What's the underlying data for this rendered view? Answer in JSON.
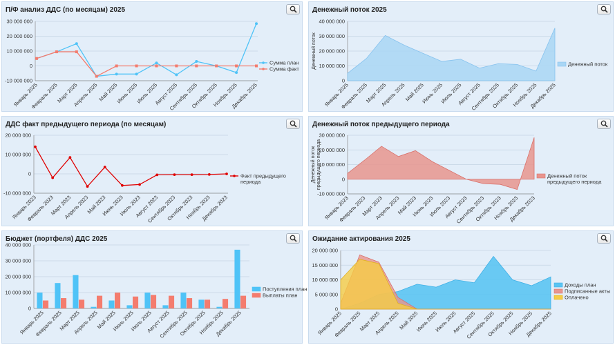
{
  "panels": [
    {
      "title": "П/Ф анализ ДДС (по месяцам) 2025"
    },
    {
      "title": "Денежный поток 2025"
    },
    {
      "title": "ДДС факт предыдущего периода (по месяцам)"
    },
    {
      "title": "Денежный поток предыдущего периода"
    },
    {
      "title": "Бюджет (портфеля) ДДС 2025"
    },
    {
      "title": "Ожидание актирования 2025"
    }
  ],
  "colors": {
    "panel_bg": "#e3eef9",
    "plan_blue": "#4fc3f7",
    "fact_red": "#f47c6e",
    "area_blue": "#a9d6f5",
    "area_red": "#e8958e",
    "line_red": "#e00000",
    "yellow": "#f5cc45"
  },
  "chart_data": [
    {
      "type": "line",
      "title": "П/Ф анализ ДДС (по месяцам) 2025",
      "categories": [
        "Январь 2025",
        "Февраль 2025",
        "Март 2025",
        "Апрель 2025",
        "Май 2025",
        "Июнь 2025",
        "Июль 2025",
        "Август 2025",
        "Сентябрь 2025",
        "Октябрь 2025",
        "Ноябрь 2025",
        "Декабрь 2025"
      ],
      "series": [
        {
          "name": "Сумма план",
          "values": [
            5000000,
            9500000,
            15000000,
            -7000000,
            -5500000,
            -5500000,
            2000000,
            -6000000,
            3000000,
            0,
            -4500000,
            28500000
          ]
        },
        {
          "name": "Сумма факт",
          "values": [
            5000000,
            9500000,
            9500000,
            -7000000,
            0,
            0,
            0,
            0,
            0,
            0,
            0,
            0
          ]
        }
      ],
      "yticks": [
        "30 000 000",
        "20 000 000",
        "10 000 000",
        "0",
        "-10 000 000"
      ],
      "ylim": [
        -10000000,
        30000000
      ],
      "grid": true,
      "legend": "right"
    },
    {
      "type": "area",
      "title": "Денежный поток 2025",
      "categories": [
        "Январь 2025",
        "Февраль 2025",
        "Март 2025",
        "Апрель 2025",
        "Май 2025",
        "Июнь 2025",
        "Июль 2025",
        "Август 2025",
        "Сентябрь 2025",
        "Октябрь 2025",
        "Ноябрь 2025",
        "Декабрь 2025"
      ],
      "series": [
        {
          "name": "Денежный поток",
          "values": [
            5000000,
            15000000,
            30500000,
            24000000,
            18500000,
            13000000,
            14500000,
            8500000,
            11500000,
            11000000,
            6500000,
            35500000
          ]
        }
      ],
      "ylabel": "Денежный поток",
      "yticks": [
        "40 000 000",
        "30 000 000",
        "20 000 000",
        "10 000 000",
        "0"
      ],
      "ylim": [
        0,
        40000000
      ],
      "grid": true,
      "legend": "right"
    },
    {
      "type": "line",
      "title": "ДДС факт предыдущего периода (по месяцам)",
      "categories": [
        "Январь 2023",
        "Февраль 2023",
        "Март 2023",
        "Апрель 2023",
        "Май 2023",
        "Июнь 2023",
        "Июль 2023",
        "Август 2023",
        "Сентябрь 2023",
        "Октябрь 2023",
        "Ноябрь 2023",
        "Декабрь 2023"
      ],
      "series": [
        {
          "name": "Факт предыдущего периода",
          "values": [
            14000000,
            -2000000,
            8500000,
            -6500000,
            3500000,
            -6000000,
            -5500000,
            -500000,
            -400000,
            -400000,
            -300000,
            0
          ]
        }
      ],
      "yticks": [
        "20 000 000",
        "10 000 000",
        "0",
        "-10 000 000"
      ],
      "ylim": [
        -10000000,
        20000000
      ],
      "grid": true,
      "legend": "right"
    },
    {
      "type": "area",
      "title": "Денежный поток предыдущего периода",
      "categories": [
        "Январь 2023",
        "Февраль 2023",
        "Март 2023",
        "Апрель 2023",
        "Май 2023",
        "Июнь 2023",
        "Июль 2023",
        "Август 2023",
        "Сентябрь 2023",
        "Октябрь 2023",
        "Ноябрь 2023",
        "Декабрь 2023"
      ],
      "series": [
        {
          "name": "Денежный поток предыдущего периода",
          "values": [
            4000000,
            13000000,
            22500000,
            15500000,
            19500000,
            12000000,
            6000000,
            0,
            -3000000,
            -3500000,
            -7000000,
            28500000
          ]
        }
      ],
      "ylabel": "Денежный поток предыдущего периода",
      "yticks": [
        "30 000 000",
        "20 000 000",
        "10 000 000",
        "0",
        "-10 000 000"
      ],
      "ylim": [
        -10000000,
        30000000
      ],
      "grid": true,
      "legend": "right"
    },
    {
      "type": "bar",
      "title": "Бюджет (портфеля) ДДС 2025",
      "categories": [
        "Январь 2025",
        "Февраль 2025",
        "Март 2025",
        "Апрель 2025",
        "Май 2025",
        "Июнь 2025",
        "Июль 2025",
        "Август 2025",
        "Сентябрь 2025",
        "Октябрь 2025",
        "Ноябрь 2025",
        "Декабрь 2025"
      ],
      "series": [
        {
          "name": "Поступления план",
          "values": [
            10000000,
            16000000,
            21000000,
            1000000,
            5000000,
            2000000,
            10000000,
            2000000,
            10000000,
            5500000,
            1000000,
            37000000
          ]
        },
        {
          "name": "Выплаты план",
          "values": [
            5000000,
            6500000,
            5500000,
            8000000,
            10000000,
            7500000,
            8500000,
            8000000,
            6500000,
            5500000,
            6000000,
            8000000
          ]
        }
      ],
      "yticks": [
        "40 000 000",
        "30 000 000",
        "20 000 000",
        "10 000 000",
        "0"
      ],
      "ylim": [
        0,
        40000000
      ],
      "grid": true,
      "legend": "right"
    },
    {
      "type": "area",
      "title": "Ожидание актирования 2025",
      "categories": [
        "Январь 2025",
        "Февраль 2025",
        "Март 2025",
        "Апрель 2025",
        "Май 2025",
        "Июнь 2025",
        "Июль 2025",
        "Август 2025",
        "Сентябрь 2025",
        "Октябрь 2025",
        "Ноябрь 2025",
        "Декабрь 2025"
      ],
      "series": [
        {
          "name": "Доходы план",
          "values": [
            0,
            2000000,
            5000000,
            6000000,
            8500000,
            7500000,
            10000000,
            9000000,
            18000000,
            10000000,
            8000000,
            11000000
          ]
        },
        {
          "name": "Подписанные акты",
          "values": [
            2000000,
            18500000,
            16000000,
            4000000,
            0,
            0,
            0,
            0,
            0,
            0,
            0,
            0
          ]
        },
        {
          "name": "Оплачено",
          "values": [
            10000000,
            17000000,
            15500000,
            2000000,
            0,
            0,
            0,
            0,
            0,
            0,
            0,
            0
          ]
        }
      ],
      "yticks": [
        "20 000 000",
        "15 000 000",
        "10 000 000",
        "5 000 000",
        "0"
      ],
      "ylim": [
        0,
        20000000
      ],
      "grid": true,
      "legend": "right"
    }
  ]
}
